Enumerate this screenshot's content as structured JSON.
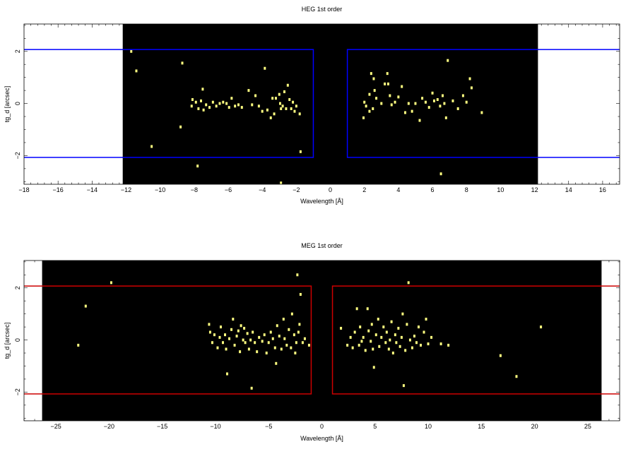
{
  "chart_data": [
    {
      "type": "scatter",
      "title": "HEG 1st order",
      "xlabel": "Wavelength [Å]",
      "ylabel": "tg_d [arcsec]",
      "xlim": [
        -18,
        17
      ],
      "ylim": [
        -3.1,
        3.05
      ],
      "xticks": [
        -18,
        -16,
        -14,
        -12,
        -10,
        -8,
        -6,
        -4,
        -2,
        0,
        2,
        4,
        6,
        8,
        10,
        12,
        14,
        16
      ],
      "yticks": [
        -2,
        0,
        2
      ],
      "grid": false,
      "background_region": {
        "x": [
          -12.2,
          12.2
        ],
        "color": "#000000"
      },
      "point_color": "#ffff80",
      "box_color": "#0000ff",
      "extraction_boxes": [
        {
          "x": [
            -20,
            -1
          ],
          "y": [
            -2.07,
            2.07
          ]
        },
        {
          "x": [
            1,
            20
          ],
          "y": [
            -2.07,
            2.07
          ]
        }
      ],
      "points": [
        [
          -11.7,
          2.0
        ],
        [
          -11.4,
          1.25
        ],
        [
          -8.7,
          1.55
        ],
        [
          -8.8,
          -0.9
        ],
        [
          -10.5,
          -1.65
        ],
        [
          -7.8,
          -2.4
        ],
        [
          -8.1,
          0.15
        ],
        [
          -8.15,
          -0.1
        ],
        [
          -7.9,
          0.05
        ],
        [
          -7.75,
          -0.2
        ],
        [
          -7.6,
          0.1
        ],
        [
          -7.5,
          0.55
        ],
        [
          -7.45,
          -0.25
        ],
        [
          -7.3,
          -0.05
        ],
        [
          -7.1,
          -0.15
        ],
        [
          -6.9,
          0.05
        ],
        [
          -6.7,
          -0.1
        ],
        [
          -6.5,
          0.0
        ],
        [
          -6.3,
          0.05
        ],
        [
          -6.1,
          0.0
        ],
        [
          -5.95,
          -0.15
        ],
        [
          -5.8,
          0.2
        ],
        [
          -5.6,
          -0.1
        ],
        [
          -5.4,
          -0.05
        ],
        [
          -5.2,
          -0.15
        ],
        [
          -4.8,
          0.5
        ],
        [
          -4.6,
          -0.05
        ],
        [
          -4.4,
          0.3
        ],
        [
          -4.2,
          -0.1
        ],
        [
          -4.0,
          -0.3
        ],
        [
          -3.85,
          1.35
        ],
        [
          -3.7,
          -0.25
        ],
        [
          -3.5,
          -0.55
        ],
        [
          -3.4,
          0.2
        ],
        [
          -3.3,
          -0.4
        ],
        [
          -3.2,
          0.2
        ],
        [
          -3.0,
          0.35
        ],
        [
          -2.95,
          0.0
        ],
        [
          -2.9,
          -0.2
        ],
        [
          -2.8,
          -0.1
        ],
        [
          -2.7,
          0.45
        ],
        [
          -2.6,
          -0.2
        ],
        [
          -2.5,
          0.7
        ],
        [
          -2.4,
          0.15
        ],
        [
          -2.3,
          -0.2
        ],
        [
          -2.2,
          0.05
        ],
        [
          -2.1,
          -0.3
        ],
        [
          -2.0,
          -0.1
        ],
        [
          -1.8,
          -0.4
        ],
        [
          -1.75,
          -1.85
        ],
        [
          -2.9,
          -3.05
        ],
        [
          2.4,
          1.15
        ],
        [
          2.55,
          0.95
        ],
        [
          2.6,
          0.5
        ],
        [
          2.3,
          0.35
        ],
        [
          2.0,
          0.05
        ],
        [
          2.1,
          -0.1
        ],
        [
          1.95,
          -0.55
        ],
        [
          2.3,
          -0.3
        ],
        [
          2.5,
          -0.2
        ],
        [
          2.7,
          0.2
        ],
        [
          3.0,
          0.0
        ],
        [
          3.2,
          0.75
        ],
        [
          3.35,
          1.15
        ],
        [
          3.4,
          0.75
        ],
        [
          3.5,
          0.3
        ],
        [
          3.6,
          -0.05
        ],
        [
          3.8,
          0.05
        ],
        [
          4.0,
          0.25
        ],
        [
          4.2,
          0.65
        ],
        [
          4.4,
          -0.35
        ],
        [
          4.6,
          0.0
        ],
        [
          4.8,
          -0.3
        ],
        [
          5.0,
          0.0
        ],
        [
          5.25,
          -0.65
        ],
        [
          5.4,
          0.2
        ],
        [
          5.6,
          0.05
        ],
        [
          5.8,
          -0.15
        ],
        [
          6.0,
          0.4
        ],
        [
          6.1,
          0.1
        ],
        [
          6.3,
          0.15
        ],
        [
          6.45,
          -0.1
        ],
        [
          6.6,
          0.3
        ],
        [
          6.7,
          0.0
        ],
        [
          6.8,
          -0.55
        ],
        [
          6.9,
          1.65
        ],
        [
          7.2,
          0.1
        ],
        [
          7.5,
          -0.2
        ],
        [
          7.8,
          0.3
        ],
        [
          8.0,
          0.05
        ],
        [
          8.2,
          0.95
        ],
        [
          8.3,
          0.6
        ],
        [
          8.9,
          -0.35
        ],
        [
          6.5,
          -2.7
        ]
      ]
    },
    {
      "type": "scatter",
      "title": "MEG 1st order",
      "xlabel": "Wavelength [Å]",
      "ylabel": "tg_d [arcsec]",
      "xlim": [
        -28,
        28
      ],
      "ylim": [
        -3.1,
        3.05
      ],
      "xticks": [
        -25,
        -20,
        -15,
        -10,
        -5,
        0,
        5,
        10,
        15,
        20,
        25
      ],
      "yticks": [
        -2,
        0,
        2
      ],
      "grid": false,
      "background_region": {
        "x": [
          -26.3,
          26.3
        ],
        "color": "#000000"
      },
      "point_color": "#ffff80",
      "box_color": "#cc0000",
      "extraction_boxes": [
        {
          "x": [
            -30,
            -1
          ],
          "y": [
            -2.07,
            2.07
          ]
        },
        {
          "x": [
            1,
            30
          ],
          "y": [
            -2.07,
            2.07
          ]
        }
      ],
      "points": [
        [
          -19.8,
          2.2
        ],
        [
          -22.2,
          1.3
        ],
        [
          -22.9,
          -0.2
        ],
        [
          -10.6,
          0.6
        ],
        [
          -10.5,
          0.3
        ],
        [
          -10.3,
          -0.1
        ],
        [
          -10.1,
          0.2
        ],
        [
          -9.8,
          -0.3
        ],
        [
          -9.6,
          0.1
        ],
        [
          -9.5,
          0.5
        ],
        [
          -9.3,
          -0.1
        ],
        [
          -9.1,
          0.2
        ],
        [
          -9.0,
          -0.35
        ],
        [
          -8.9,
          -1.3
        ],
        [
          -8.7,
          0.05
        ],
        [
          -8.5,
          0.4
        ],
        [
          -8.35,
          0.8
        ],
        [
          -8.2,
          -0.2
        ],
        [
          -8.0,
          0.15
        ],
        [
          -7.85,
          0.35
        ],
        [
          -7.7,
          -0.45
        ],
        [
          -7.6,
          0.55
        ],
        [
          -7.4,
          0.0
        ],
        [
          -7.3,
          0.45
        ],
        [
          -7.2,
          -0.1
        ],
        [
          -7.0,
          0.25
        ],
        [
          -6.85,
          -0.35
        ],
        [
          -6.7,
          0.0
        ],
        [
          -6.6,
          -1.85
        ],
        [
          -6.5,
          0.3
        ],
        [
          -6.3,
          -0.1
        ],
        [
          -6.1,
          -0.45
        ],
        [
          -5.9,
          0.1
        ],
        [
          -5.6,
          -0.05
        ],
        [
          -5.4,
          0.2
        ],
        [
          -5.2,
          -0.5
        ],
        [
          -5.0,
          -0.1
        ],
        [
          -4.8,
          0.3
        ],
        [
          -4.6,
          0.05
        ],
        [
          -4.4,
          -0.3
        ],
        [
          -4.3,
          -0.9
        ],
        [
          -4.2,
          0.55
        ],
        [
          -4.0,
          0.15
        ],
        [
          -3.8,
          -0.35
        ],
        [
          -3.6,
          0.8
        ],
        [
          -3.5,
          0.05
        ],
        [
          -3.3,
          -0.2
        ],
        [
          -3.1,
          0.4
        ],
        [
          -2.9,
          -0.3
        ],
        [
          -2.8,
          1.0
        ],
        [
          -2.6,
          0.2
        ],
        [
          -2.5,
          -0.5
        ],
        [
          -2.4,
          -0.1
        ],
        [
          -2.2,
          0.3
        ],
        [
          -2.1,
          0.6
        ],
        [
          -2.0,
          1.75
        ],
        [
          -1.8,
          -0.1
        ],
        [
          -1.6,
          0.05
        ],
        [
          -2.3,
          2.5
        ],
        [
          -1.2,
          -0.2
        ],
        [
          1.8,
          0.45
        ],
        [
          2.4,
          -0.2
        ],
        [
          2.7,
          0.1
        ],
        [
          2.9,
          -0.3
        ],
        [
          3.1,
          0.3
        ],
        [
          3.3,
          1.2
        ],
        [
          3.5,
          -0.2
        ],
        [
          3.6,
          0.5
        ],
        [
          3.75,
          -0.05
        ],
        [
          3.9,
          0.1
        ],
        [
          4.1,
          -0.4
        ],
        [
          4.3,
          1.2
        ],
        [
          4.4,
          0.35
        ],
        [
          4.6,
          -0.05
        ],
        [
          4.7,
          0.6
        ],
        [
          4.8,
          -0.35
        ],
        [
          4.9,
          -1.05
        ],
        [
          5.1,
          0.2
        ],
        [
          5.3,
          0.8
        ],
        [
          5.4,
          -0.25
        ],
        [
          5.6,
          0.1
        ],
        [
          5.8,
          0.5
        ],
        [
          6.0,
          -0.1
        ],
        [
          6.1,
          0.3
        ],
        [
          6.3,
          -0.35
        ],
        [
          6.4,
          0.0
        ],
        [
          6.55,
          0.7
        ],
        [
          6.7,
          -0.5
        ],
        [
          6.9,
          0.2
        ],
        [
          7.0,
          -0.1
        ],
        [
          7.2,
          0.45
        ],
        [
          7.35,
          -0.25
        ],
        [
          7.5,
          0.1
        ],
        [
          7.6,
          1.0
        ],
        [
          7.7,
          -1.75
        ],
        [
          7.85,
          -0.4
        ],
        [
          8.0,
          0.6
        ],
        [
          8.15,
          2.2
        ],
        [
          8.3,
          0.0
        ],
        [
          8.5,
          -0.3
        ],
        [
          8.7,
          0.15
        ],
        [
          8.9,
          -0.1
        ],
        [
          9.1,
          0.5
        ],
        [
          9.3,
          -0.2
        ],
        [
          9.6,
          0.3
        ],
        [
          9.8,
          0.8
        ],
        [
          10.0,
          -0.15
        ],
        [
          10.3,
          0.1
        ],
        [
          11.2,
          -0.15
        ],
        [
          11.9,
          -0.2
        ],
        [
          16.8,
          -0.6
        ],
        [
          18.3,
          -1.4
        ],
        [
          20.6,
          0.5
        ]
      ]
    }
  ]
}
